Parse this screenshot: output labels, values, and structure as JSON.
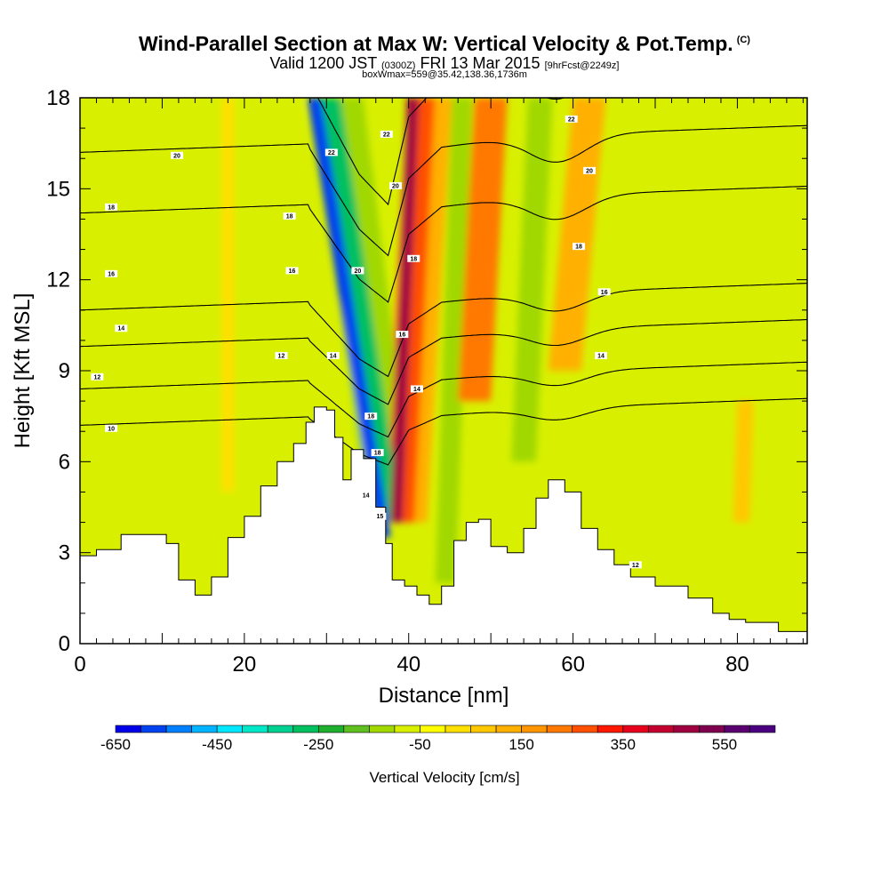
{
  "header": {
    "title": "Wind-Parallel Section at Max W: Vertical Velocity & Pot.Temp.",
    "copyright": "(C)",
    "subtitle_main": "Valid 1200 JST",
    "subtitle_utc": "(0300Z)",
    "subtitle_date": "FRI 13 Mar 2015",
    "subtitle_fcst": "[9hrFcst@2249z]",
    "boxline": "boxWmax=559@35.42,138.36,1736m"
  },
  "chart_data": {
    "type": "heatmap",
    "title": "Wind-Parallel Section at Max W: Vertical Velocity & Pot.Temp.",
    "xlabel": "Distance [nm]",
    "ylabel": "Height [Kft MSL]",
    "xlim": [
      0,
      88.5
    ],
    "ylim": [
      0,
      18
    ],
    "x_ticks": [
      0,
      20,
      40,
      60,
      80
    ],
    "y_ticks": [
      0,
      3,
      6,
      9,
      12,
      15,
      18
    ],
    "colorbar": {
      "title": "Vertical Velocity [cm/s]",
      "min": -650,
      "max": 650,
      "step": 50,
      "tick_labels": [
        "-650",
        "-450",
        "-250",
        "-50",
        "150",
        "350",
        "550"
      ],
      "colors": [
        "#0000e8",
        "#0041f0",
        "#0080ff",
        "#00b4ff",
        "#00e8ff",
        "#00e8c8",
        "#00d090",
        "#00c060",
        "#20b030",
        "#60c020",
        "#a0d800",
        "#d8f000",
        "#ffff00",
        "#ffe000",
        "#ffc800",
        "#ffb000",
        "#ff9600",
        "#ff7800",
        "#ff5000",
        "#ff1800",
        "#e8001c",
        "#c40030",
        "#a00040",
        "#800050",
        "#5a0070",
        "#4b0082"
      ]
    },
    "terrain": [
      {
        "x": 0,
        "h": 2.9
      },
      {
        "x": 2,
        "h": 3.1
      },
      {
        "x": 5,
        "h": 3.6
      },
      {
        "x": 9,
        "h": 3.6
      },
      {
        "x": 10.5,
        "h": 3.3
      },
      {
        "x": 12,
        "h": 2.1
      },
      {
        "x": 14,
        "h": 1.6
      },
      {
        "x": 16,
        "h": 2.2
      },
      {
        "x": 18,
        "h": 3.5
      },
      {
        "x": 20,
        "h": 4.2
      },
      {
        "x": 22,
        "h": 5.2
      },
      {
        "x": 24,
        "h": 6
      },
      {
        "x": 26,
        "h": 6.6
      },
      {
        "x": 27.5,
        "h": 7.3
      },
      {
        "x": 28.5,
        "h": 7.8
      },
      {
        "x": 30,
        "h": 7.7
      },
      {
        "x": 31,
        "h": 6.8
      },
      {
        "x": 32,
        "h": 5.4
      },
      {
        "x": 33,
        "h": 6.4
      },
      {
        "x": 34.5,
        "h": 6.1
      },
      {
        "x": 36,
        "h": 4.5
      },
      {
        "x": 37.2,
        "h": 3.3
      },
      {
        "x": 38,
        "h": 2.1
      },
      {
        "x": 39.5,
        "h": 1.9
      },
      {
        "x": 41,
        "h": 1.6
      },
      {
        "x": 42.5,
        "h": 1.3
      },
      {
        "x": 44,
        "h": 1.9
      },
      {
        "x": 45.5,
        "h": 3.4
      },
      {
        "x": 47,
        "h": 4
      },
      {
        "x": 48.5,
        "h": 4.1
      },
      {
        "x": 50,
        "h": 3.2
      },
      {
        "x": 52,
        "h": 3
      },
      {
        "x": 54,
        "h": 3.8
      },
      {
        "x": 55.5,
        "h": 4.8
      },
      {
        "x": 57,
        "h": 5.4
      },
      {
        "x": 59,
        "h": 5
      },
      {
        "x": 61,
        "h": 3.8
      },
      {
        "x": 63,
        "h": 3.1
      },
      {
        "x": 65,
        "h": 2.6
      },
      {
        "x": 67,
        "h": 2.2
      },
      {
        "x": 70,
        "h": 1.9
      },
      {
        "x": 74,
        "h": 1.5
      },
      {
        "x": 77,
        "h": 1
      },
      {
        "x": 79,
        "h": 0.8
      },
      {
        "x": 81,
        "h": 0.7
      },
      {
        "x": 83.5,
        "h": 0.7
      },
      {
        "x": 85,
        "h": 0.4
      },
      {
        "x": 88.5,
        "h": 0.4
      }
    ],
    "velocity_features": [
      {
        "x0": 37,
        "x1": 28.5,
        "y0": 3.5,
        "y1": 18,
        "w": 1.6,
        "value": -600
      },
      {
        "x0": 37.5,
        "x1": 30,
        "y0": 4,
        "y1": 18,
        "w": 3.4,
        "value": -300
      },
      {
        "x0": 37.5,
        "x1": 31.5,
        "y0": 5,
        "y1": 18,
        "w": 6,
        "value": -120
      },
      {
        "x0": 38.5,
        "x1": 40.5,
        "y0": 4,
        "y1": 18,
        "w": 1.5,
        "value": 450
      },
      {
        "x0": 39,
        "x1": 41.5,
        "y0": 4,
        "y1": 18,
        "w": 3.4,
        "value": 250
      },
      {
        "x0": 39.5,
        "x1": 42.5,
        "y0": 4,
        "y1": 18,
        "w": 5.5,
        "value": 100
      },
      {
        "x0": 44.5,
        "x1": 46.5,
        "y0": 2,
        "y1": 18,
        "w": 2.5,
        "value": -130
      },
      {
        "x0": 48,
        "x1": 50,
        "y0": 8,
        "y1": 18,
        "w": 4,
        "value": 200
      },
      {
        "x0": 54,
        "x1": 56,
        "y0": 6,
        "y1": 18,
        "w": 3,
        "value": -120
      },
      {
        "x0": 59,
        "x1": 62,
        "y0": 9,
        "y1": 18,
        "w": 4,
        "value": 100
      },
      {
        "x0": 65,
        "x1": 67,
        "y0": 10,
        "y1": 18,
        "w": 3,
        "value": -70
      },
      {
        "x0": 82,
        "x1": 83,
        "y0": 9,
        "y1": 17,
        "w": 2.5,
        "value": -80
      },
      {
        "x0": 80.5,
        "x1": 81,
        "y0": 4,
        "y1": 8,
        "w": 2,
        "value": 60
      },
      {
        "x0": 10.5,
        "x1": 11,
        "y0": 3.5,
        "y1": 12,
        "w": 1.2,
        "value": -80
      },
      {
        "x0": 25,
        "x1": 26,
        "y0": 4,
        "y1": 18,
        "w": 1.5,
        "value": -70
      },
      {
        "x0": 35,
        "x1": 35,
        "y0": 14,
        "y1": 18,
        "w": 1.2,
        "value": -80
      },
      {
        "x0": 18,
        "x1": 18,
        "y0": 5,
        "y1": 18,
        "w": 1.5,
        "value": 40
      }
    ],
    "theta_contours": [
      {
        "label": "10",
        "y_left": 7.2
      },
      {
        "label": "12",
        "y_left": 8.4
      },
      {
        "label": "14",
        "y_left": 9.8
      },
      {
        "label": "16",
        "y_left": 11
      },
      {
        "label": "18",
        "y_left": 14.2
      },
      {
        "label": "20",
        "y_left": 16.2
      },
      {
        "label": "22",
        "y_left": 18.4
      }
    ],
    "theta_labels": [
      {
        "text": "10",
        "x": 3.8,
        "y": 7.1
      },
      {
        "text": "12",
        "x": 2.1,
        "y": 8.8
      },
      {
        "text": "14",
        "x": 5,
        "y": 10.4
      },
      {
        "text": "16",
        "x": 3.8,
        "y": 12.2
      },
      {
        "text": "18",
        "x": 3.8,
        "y": 14.4
      },
      {
        "text": "20",
        "x": 11.8,
        "y": 16.1
      },
      {
        "text": "12",
        "x": 24.5,
        "y": 9.5
      },
      {
        "text": "16",
        "x": 25.8,
        "y": 12.3
      },
      {
        "text": "18",
        "x": 25.5,
        "y": 14.1
      },
      {
        "text": "22",
        "x": 30.6,
        "y": 16.2
      },
      {
        "text": "14",
        "x": 30.8,
        "y": 9.5
      },
      {
        "text": "20",
        "x": 33.8,
        "y": 12.3
      },
      {
        "text": "18",
        "x": 35.4,
        "y": 7.5
      },
      {
        "text": "18",
        "x": 36.2,
        "y": 6.3
      },
      {
        "text": "14",
        "x": 34.8,
        "y": 4.9
      },
      {
        "text": "15",
        "x": 36.5,
        "y": 4.2
      },
      {
        "text": "22",
        "x": 37.3,
        "y": 16.8
      },
      {
        "text": "20",
        "x": 38.4,
        "y": 15.1
      },
      {
        "text": "18",
        "x": 40.6,
        "y": 12.7
      },
      {
        "text": "16",
        "x": 39.2,
        "y": 10.2
      },
      {
        "text": "14",
        "x": 41,
        "y": 8.4
      },
      {
        "text": "20",
        "x": 62,
        "y": 15.6
      },
      {
        "text": "18",
        "x": 60.7,
        "y": 13.1
      },
      {
        "text": "16",
        "x": 63.8,
        "y": 11.6
      },
      {
        "text": "14",
        "x": 63.4,
        "y": 9.5
      },
      {
        "text": "22",
        "x": 59.8,
        "y": 17.3
      },
      {
        "text": "12",
        "x": 67.6,
        "y": 2.6
      }
    ]
  }
}
